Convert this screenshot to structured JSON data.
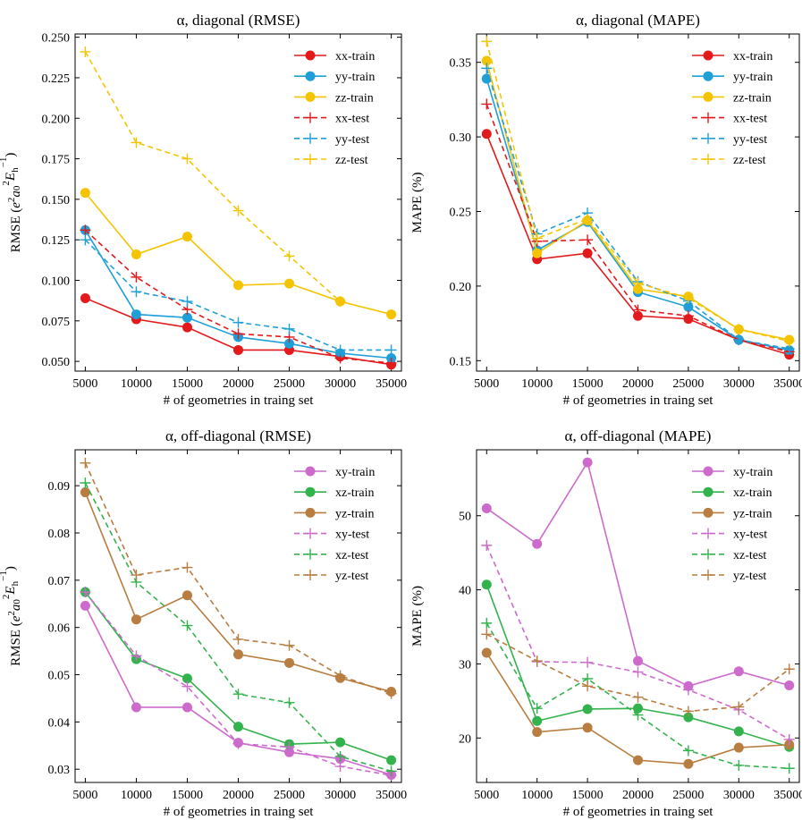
{
  "chart_data": [
    {
      "type": "line",
      "title": "α, diagonal (RMSE)",
      "xlabel": "# of geometries in traing set",
      "ylabel": "RMSE",
      "x": [
        5000,
        10000,
        15000,
        20000,
        25000,
        30000,
        35000
      ],
      "x_ticks": [
        "5000",
        "10000",
        "15000",
        "20000",
        "25000",
        "30000",
        "35000"
      ],
      "xlim": [
        4000,
        36000
      ],
      "ylim": [
        0.044,
        0.252
      ],
      "y_ticks": [
        0.05,
        0.075,
        0.1,
        0.125,
        0.15,
        0.175,
        0.2,
        0.225,
        0.25
      ],
      "y_tick_labels": [
        "0.050",
        "0.075",
        "0.100",
        "0.125",
        "0.150",
        "0.175",
        "0.200",
        "0.225",
        "0.250"
      ],
      "legend_position": "top-right",
      "series": [
        {
          "name": "xx-train",
          "style": "solid",
          "marker": "circle",
          "color": "#e31a1c",
          "values": [
            0.089,
            0.076,
            0.071,
            0.057,
            0.057,
            0.053,
            0.048
          ]
        },
        {
          "name": "yy-train",
          "style": "solid",
          "marker": "circle",
          "color": "#1f9fd8",
          "values": [
            0.131,
            0.079,
            0.077,
            0.065,
            0.061,
            0.055,
            0.052
          ]
        },
        {
          "name": "zz-train",
          "style": "solid",
          "marker": "circle",
          "color": "#f5c400",
          "values": [
            0.154,
            0.116,
            0.127,
            0.097,
            0.098,
            0.087,
            0.079
          ]
        },
        {
          "name": "xx-test",
          "style": "dashed",
          "marker": "plus",
          "color": "#e31a1c",
          "values": [
            0.131,
            0.102,
            0.082,
            0.067,
            0.065,
            0.052,
            0.049
          ]
        },
        {
          "name": "yy-test",
          "style": "dashed",
          "marker": "plus",
          "color": "#1f9fd8",
          "values": [
            0.125,
            0.093,
            0.087,
            0.074,
            0.07,
            0.057,
            0.057
          ]
        },
        {
          "name": "zz-test",
          "style": "dashed",
          "marker": "plus",
          "color": "#f5c400",
          "values": [
            0.241,
            0.185,
            0.175,
            0.143,
            0.115,
            0.087,
            null
          ]
        }
      ]
    },
    {
      "type": "line",
      "title": "α, diagonal (MAPE)",
      "xlabel": "# of geometries in traing set",
      "ylabel": "MAPE (%)",
      "x": [
        5000,
        10000,
        15000,
        20000,
        25000,
        30000,
        35000
      ],
      "x_ticks": [
        "5000",
        "10000",
        "15000",
        "20000",
        "25000",
        "30000",
        "35000"
      ],
      "xlim": [
        4000,
        36000
      ],
      "ylim": [
        0.143,
        0.369
      ],
      "y_ticks": [
        0.15,
        0.2,
        0.25,
        0.3,
        0.35
      ],
      "y_tick_labels": [
        "0.15",
        "0.20",
        "0.25",
        "0.30",
        "0.35"
      ],
      "legend_position": "top-right",
      "series": [
        {
          "name": "xx-train",
          "style": "solid",
          "marker": "circle",
          "color": "#e31a1c",
          "values": [
            0.302,
            0.218,
            0.222,
            0.18,
            0.178,
            0.164,
            0.154
          ]
        },
        {
          "name": "yy-train",
          "style": "solid",
          "marker": "circle",
          "color": "#1f9fd8",
          "values": [
            0.339,
            0.224,
            0.243,
            0.196,
            0.186,
            0.164,
            0.157
          ]
        },
        {
          "name": "zz-train",
          "style": "solid",
          "marker": "circle",
          "color": "#f5c400",
          "values": [
            0.351,
            0.222,
            0.244,
            0.198,
            0.193,
            0.171,
            0.164
          ]
        },
        {
          "name": "xx-test",
          "style": "dashed",
          "marker": "plus",
          "color": "#e31a1c",
          "values": [
            0.322,
            0.23,
            0.231,
            0.184,
            0.18,
            0.164,
            0.156
          ]
        },
        {
          "name": "yy-test",
          "style": "dashed",
          "marker": "plus",
          "color": "#1f9fd8",
          "values": [
            0.346,
            0.235,
            0.249,
            0.203,
            0.19,
            0.164,
            0.158
          ]
        },
        {
          "name": "zz-test",
          "style": "dashed",
          "marker": "plus",
          "color": "#f5c400",
          "values": [
            0.364,
            0.232,
            0.245,
            0.202,
            0.192,
            0.171,
            0.163
          ]
        }
      ]
    },
    {
      "type": "line",
      "title": "α, off-diagonal (RMSE)",
      "xlabel": "# of geometries in traing set",
      "ylabel": "RMSE",
      "x": [
        5000,
        10000,
        15000,
        20000,
        25000,
        30000,
        35000
      ],
      "x_ticks": [
        "5000",
        "10000",
        "15000",
        "20000",
        "25000",
        "30000",
        "35000"
      ],
      "xlim": [
        4000,
        36000
      ],
      "ylim": [
        0.0272,
        0.0976
      ],
      "y_ticks": [
        0.03,
        0.04,
        0.05,
        0.06,
        0.07,
        0.08,
        0.09
      ],
      "y_tick_labels": [
        "0.03",
        "0.04",
        "0.05",
        "0.06",
        "0.07",
        "0.08",
        "0.09"
      ],
      "legend_position": "top-right",
      "series": [
        {
          "name": "xy-train",
          "style": "solid",
          "marker": "circle",
          "color": "#cc6bcc",
          "values": [
            0.0646,
            0.0431,
            0.0431,
            0.0356,
            0.0336,
            0.0322,
            0.0288
          ]
        },
        {
          "name": "xz-train",
          "style": "solid",
          "marker": "circle",
          "color": "#33b34d",
          "values": [
            0.0675,
            0.0533,
            0.0492,
            0.039,
            0.0353,
            0.0357,
            0.0319
          ]
        },
        {
          "name": "yz-train",
          "style": "solid",
          "marker": "circle",
          "color": "#b87d40",
          "values": [
            0.0886,
            0.0617,
            0.0668,
            0.0543,
            0.0525,
            0.0493,
            0.0464
          ]
        },
        {
          "name": "xy-test",
          "style": "dashed",
          "marker": "plus",
          "color": "#cc6bcc",
          "values": [
            0.0675,
            0.054,
            0.0475,
            0.0354,
            0.0347,
            0.0306,
            0.0287
          ]
        },
        {
          "name": "xz-test",
          "style": "dashed",
          "marker": "plus",
          "color": "#33b34d",
          "values": [
            0.0906,
            0.0696,
            0.0604,
            0.0459,
            0.0441,
            0.0327,
            0.0296
          ]
        },
        {
          "name": "yz-test",
          "style": "dashed",
          "marker": "plus",
          "color": "#b87d40",
          "values": [
            0.0948,
            0.0711,
            0.0727,
            0.0575,
            0.0562,
            0.0498,
            0.046
          ]
        }
      ]
    },
    {
      "type": "line",
      "title": "α, off-diagonal (MAPE)",
      "xlabel": "# of geometries in traing set",
      "ylabel": "MAPE (%)",
      "x": [
        5000,
        10000,
        15000,
        20000,
        25000,
        30000,
        35000
      ],
      "x_ticks": [
        "5000",
        "10000",
        "15000",
        "20000",
        "25000",
        "30000",
        "35000"
      ],
      "xlim": [
        4000,
        36000
      ],
      "ylim": [
        14.0,
        58.9
      ],
      "y_ticks": [
        20,
        30,
        40,
        50
      ],
      "y_tick_labels": [
        "20",
        "30",
        "40",
        "50"
      ],
      "legend_position": "top-right",
      "series": [
        {
          "name": "xy-train",
          "style": "solid",
          "marker": "circle",
          "color": "#cc6bcc",
          "values": [
            51.0,
            46.2,
            57.2,
            30.4,
            27.0,
            29.0,
            27.1
          ]
        },
        {
          "name": "xz-train",
          "style": "solid",
          "marker": "circle",
          "color": "#33b34d",
          "values": [
            40.7,
            22.3,
            23.9,
            24.0,
            22.8,
            20.9,
            18.8
          ]
        },
        {
          "name": "yz-train",
          "style": "solid",
          "marker": "circle",
          "color": "#b87d40",
          "values": [
            31.5,
            20.8,
            21.4,
            17.0,
            16.5,
            18.7,
            19.1
          ]
        },
        {
          "name": "xy-test",
          "style": "dashed",
          "marker": "plus",
          "color": "#cc6bcc",
          "values": [
            46.0,
            30.3,
            30.2,
            28.9,
            26.5,
            23.8,
            19.8
          ]
        },
        {
          "name": "xz-test",
          "style": "dashed",
          "marker": "plus",
          "color": "#33b34d",
          "values": [
            35.5,
            24.0,
            28.0,
            23.1,
            18.3,
            16.3,
            15.9
          ]
        },
        {
          "name": "yz-test",
          "style": "dashed",
          "marker": "plus",
          "color": "#b87d40",
          "values": [
            34.0,
            30.4,
            27.0,
            25.5,
            23.6,
            24.2,
            29.3
          ]
        }
      ]
    }
  ]
}
